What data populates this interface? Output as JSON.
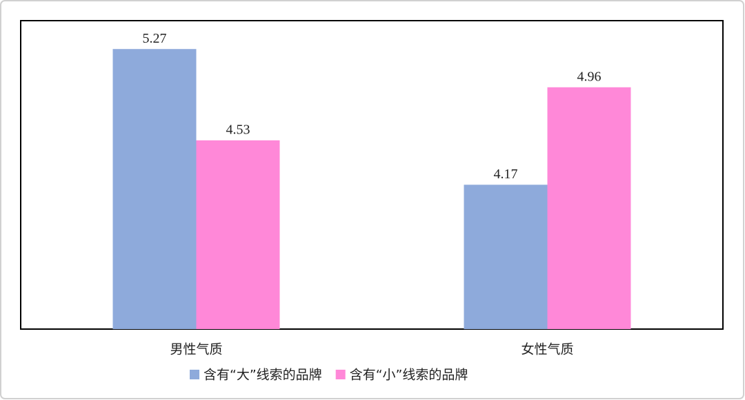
{
  "chart_data": {
    "type": "bar",
    "categories": [
      "男性气质",
      "女性气质"
    ],
    "series": [
      {
        "name": "含有“大”线索的品牌",
        "color": "#8eaadb",
        "values": [
          5.27,
          4.17
        ]
      },
      {
        "name": "含有“小”线索的品牌",
        "color": "#ff88d8",
        "values": [
          4.53,
          4.96
        ]
      }
    ],
    "ylim": [
      3,
      5.5
    ],
    "legend": "bottom"
  }
}
